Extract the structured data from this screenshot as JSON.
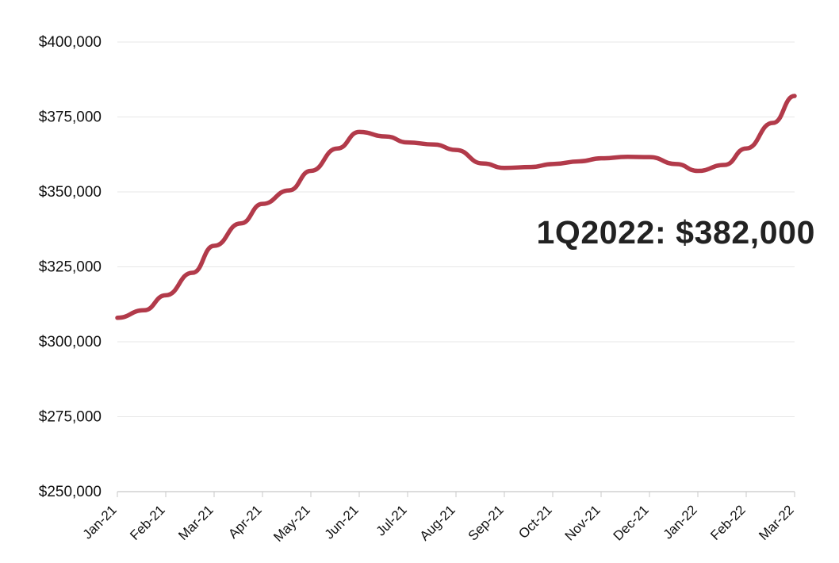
{
  "chart_data": {
    "type": "line",
    "title": "",
    "xlabel": "",
    "ylabel": "",
    "x": [
      "Jan-21",
      "Feb-21",
      "Mar-21",
      "Apr-21",
      "May-21",
      "Jun-21",
      "Jul-21",
      "Aug-21",
      "Sep-21",
      "Oct-21",
      "Nov-21",
      "Dec-21",
      "Jan-22",
      "Feb-22",
      "Mar-22"
    ],
    "y_ticks": [
      "$250,000",
      "$275,000",
      "$300,000",
      "$325,000",
      "$350,000",
      "$375,000",
      "$400,000"
    ],
    "ylim": [
      250000,
      400000
    ],
    "grid": true,
    "series": [
      {
        "color": "#B23A4A",
        "values": [
          {
            "x": "Jan-21",
            "y": 308000
          },
          {
            "x": "Jan-21",
            "y": 310500,
            "offset": 0.55
          },
          {
            "x": "Feb-21",
            "y": 315500
          },
          {
            "x": "Feb-21",
            "y": 323000,
            "offset": 0.55
          },
          {
            "x": "Mar-21",
            "y": 332000
          },
          {
            "x": "Mar-21",
            "y": 339500,
            "offset": 0.55
          },
          {
            "x": "Apr-21",
            "y": 346000
          },
          {
            "x": "Apr-21",
            "y": 350500,
            "offset": 0.55
          },
          {
            "x": "May-21",
            "y": 357000
          },
          {
            "x": "May-21",
            "y": 364500,
            "offset": 0.55
          },
          {
            "x": "Jun-21",
            "y": 370000
          },
          {
            "x": "Jun-21",
            "y": 368500,
            "offset": 0.55
          },
          {
            "x": "Jul-21",
            "y": 366500
          },
          {
            "x": "Jul-21",
            "y": 365800,
            "offset": 0.55
          },
          {
            "x": "Aug-21",
            "y": 364000
          },
          {
            "x": "Aug-21",
            "y": 359500,
            "offset": 0.55
          },
          {
            "x": "Sep-21",
            "y": 358000
          },
          {
            "x": "Sep-21",
            "y": 358300,
            "offset": 0.55
          },
          {
            "x": "Oct-21",
            "y": 359300
          },
          {
            "x": "Oct-21",
            "y": 360200,
            "offset": 0.55
          },
          {
            "x": "Nov-21",
            "y": 361200
          },
          {
            "x": "Nov-21",
            "y": 361700,
            "offset": 0.55
          },
          {
            "x": "Dec-21",
            "y": 361600
          },
          {
            "x": "Dec-21",
            "y": 359300,
            "offset": 0.55
          },
          {
            "x": "Jan-22",
            "y": 357000
          },
          {
            "x": "Jan-22",
            "y": 359000,
            "offset": 0.55
          },
          {
            "x": "Feb-22",
            "y": 364500
          },
          {
            "x": "Feb-22",
            "y": 373000,
            "offset": 0.55
          },
          {
            "x": "Mar-22",
            "y": 382000
          }
        ]
      }
    ],
    "annotation": "1Q2022: $382,000"
  }
}
